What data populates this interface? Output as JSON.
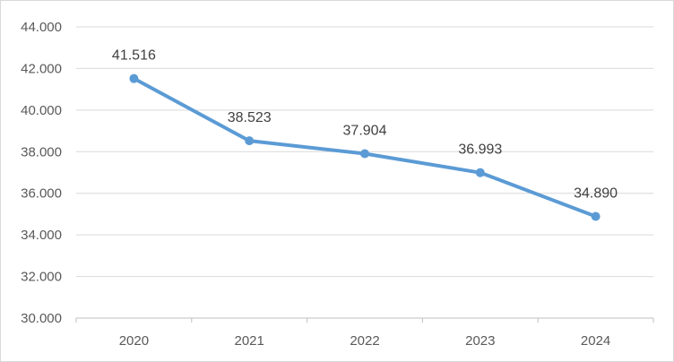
{
  "chart_data": {
    "type": "line",
    "title": "",
    "xlabel": "",
    "ylabel": "",
    "categories": [
      "2020",
      "2021",
      "2022",
      "2023",
      "2024"
    ],
    "series": [
      {
        "values": [
          41.516,
          38.523,
          37.904,
          36.993,
          34.89
        ],
        "value_labels": [
          "41.516",
          "38.523",
          "37.904",
          "36.993",
          "34.890"
        ],
        "color": "#5b9bd5"
      }
    ],
    "ylim": [
      30,
      44
    ],
    "y_ticks": [
      30,
      32,
      34,
      36,
      38,
      40,
      42,
      44
    ],
    "y_tick_labels": [
      "30.000",
      "32.000",
      "34.000",
      "36.000",
      "38.000",
      "40.000",
      "42.000",
      "44.000"
    ],
    "grid": true,
    "legend": "none"
  },
  "colors": {
    "gridline": "#d9d9d9",
    "axis": "#bfbfbf",
    "series": "#5b9bd5"
  }
}
